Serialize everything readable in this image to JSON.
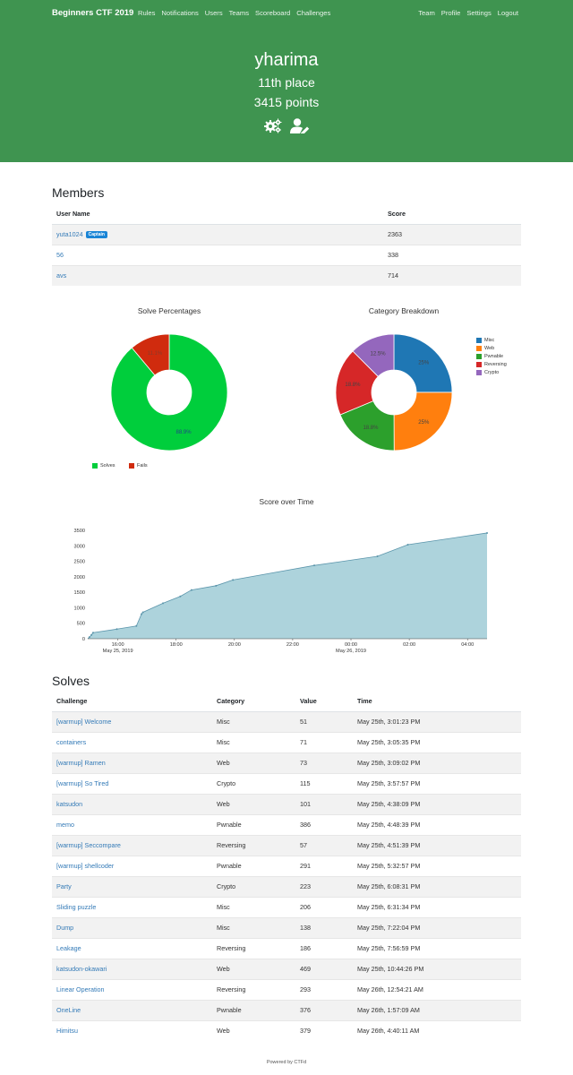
{
  "nav": {
    "brand": "Beginners CTF 2019",
    "left": [
      "Rules",
      "Notifications",
      "Users",
      "Teams",
      "Scoreboard",
      "Challenges"
    ],
    "right": [
      "Team",
      "Profile",
      "Settings",
      "Logout"
    ]
  },
  "team": {
    "name": "yharima",
    "place_num": "11th",
    "place_word": "place",
    "points_num": "3415",
    "points_word": "points",
    "icons": [
      "cogs-icon",
      "user-edit-icon"
    ]
  },
  "members": {
    "title": "Members",
    "headers": [
      "User Name",
      "Score"
    ],
    "rows": [
      {
        "name": "yuta1024",
        "badge": "Captain",
        "score": "2363"
      },
      {
        "name": "56",
        "badge": "",
        "score": "338"
      },
      {
        "name": "avs",
        "badge": "",
        "score": "714"
      }
    ]
  },
  "solve_chart": {
    "title": "Solve Percentages",
    "legend": [
      "Solves",
      "Fails"
    ],
    "labels": [
      "88.9%",
      "11.1%"
    ],
    "colors": [
      "#00ce3c",
      "#d02b0e"
    ]
  },
  "category_chart": {
    "title": "Category Breakdown",
    "legend": [
      "Misc",
      "Web",
      "Pwnable",
      "Reversing",
      "Crypto"
    ],
    "labels": [
      "25%",
      "25%",
      "18.8%",
      "18.8%",
      "12.5%"
    ],
    "colors": [
      "#1f77b4",
      "#ff7f0e",
      "#2ca02c",
      "#d62728",
      "#9467bd"
    ]
  },
  "score_chart": {
    "title": "Score over Time",
    "y_ticks": [
      "3500",
      "3000",
      "2500",
      "2000",
      "1500",
      "1000",
      "500",
      "0"
    ],
    "x_ticks": [
      "16:00",
      "18:00",
      "20:00",
      "22:00",
      "00:00",
      "02:00",
      "04:00"
    ],
    "x_dates": [
      "May 25, 2019",
      "May 26, 2019"
    ]
  },
  "chart_data": [
    {
      "type": "pie",
      "title": "Solve Percentages",
      "categories": [
        "Solves",
        "Fails"
      ],
      "values": [
        88.9,
        11.1
      ],
      "legend_position": "bottom"
    },
    {
      "type": "pie",
      "title": "Category Breakdown",
      "categories": [
        "Misc",
        "Web",
        "Pwnable",
        "Reversing",
        "Crypto"
      ],
      "values": [
        25,
        25,
        18.8,
        18.8,
        12.5
      ],
      "legend_position": "right"
    },
    {
      "type": "area",
      "title": "Score over Time",
      "x": [
        "May 25 15:01:23",
        "May 25 15:05:35",
        "May 25 15:09:02",
        "May 25 15:57:57",
        "May 25 16:38:09",
        "May 25 16:48:39",
        "May 25 16:51:39",
        "May 25 17:32:57",
        "May 25 18:08:31",
        "May 25 18:31:34",
        "May 25 19:22:04",
        "May 25 19:56:59",
        "May 25 22:44:26",
        "May 26 00:54:21",
        "May 26 01:57:09",
        "May 26 04:40:11"
      ],
      "y": [
        51,
        122,
        195,
        310,
        411,
        797,
        854,
        1145,
        1368,
        1574,
        1712,
        1898,
        2367,
        2660,
        3036,
        3415
      ],
      "ylim": [
        0,
        3500
      ],
      "grid": false
    }
  ],
  "solves": {
    "title": "Solves",
    "headers": [
      "Challenge",
      "Category",
      "Value",
      "Time"
    ],
    "rows": [
      {
        "challenge": "[warmup] Welcome",
        "category": "Misc",
        "value": "51",
        "time": "May 25th, 3:01:23 PM"
      },
      {
        "challenge": "containers",
        "category": "Misc",
        "value": "71",
        "time": "May 25th, 3:05:35 PM"
      },
      {
        "challenge": "[warmup] Ramen",
        "category": "Web",
        "value": "73",
        "time": "May 25th, 3:09:02 PM"
      },
      {
        "challenge": "[warmup] So Tired",
        "category": "Crypto",
        "value": "115",
        "time": "May 25th, 3:57:57 PM"
      },
      {
        "challenge": "katsudon",
        "category": "Web",
        "value": "101",
        "time": "May 25th, 4:38:09 PM"
      },
      {
        "challenge": "memo",
        "category": "Pwnable",
        "value": "386",
        "time": "May 25th, 4:48:39 PM"
      },
      {
        "challenge": "[warmup] Seccompare",
        "category": "Reversing",
        "value": "57",
        "time": "May 25th, 4:51:39 PM"
      },
      {
        "challenge": "[warmup] shellcoder",
        "category": "Pwnable",
        "value": "291",
        "time": "May 25th, 5:32:57 PM"
      },
      {
        "challenge": "Party",
        "category": "Crypto",
        "value": "223",
        "time": "May 25th, 6:08:31 PM"
      },
      {
        "challenge": "Sliding puzzle",
        "category": "Misc",
        "value": "206",
        "time": "May 25th, 6:31:34 PM"
      },
      {
        "challenge": "Dump",
        "category": "Misc",
        "value": "138",
        "time": "May 25th, 7:22:04 PM"
      },
      {
        "challenge": "Leakage",
        "category": "Reversing",
        "value": "186",
        "time": "May 25th, 7:56:59 PM"
      },
      {
        "challenge": "katsudon-okawari",
        "category": "Web",
        "value": "469",
        "time": "May 25th, 10:44:26 PM"
      },
      {
        "challenge": "Linear Operation",
        "category": "Reversing",
        "value": "293",
        "time": "May 26th, 12:54:21 AM"
      },
      {
        "challenge": "OneLine",
        "category": "Pwnable",
        "value": "376",
        "time": "May 26th, 1:57:09 AM"
      },
      {
        "challenge": "Himitsu",
        "category": "Web",
        "value": "379",
        "time": "May 26th, 4:40:11 AM"
      }
    ]
  },
  "footer": "Powered by CTFd"
}
